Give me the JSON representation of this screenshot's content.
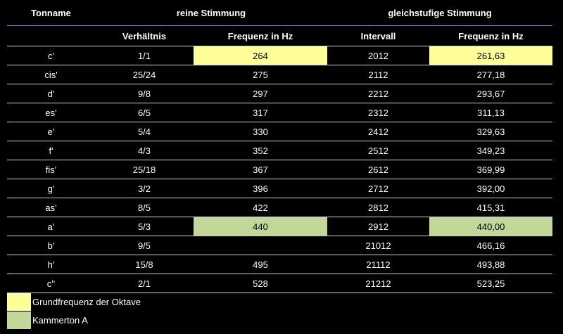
{
  "header": {
    "tonname": "Tonname",
    "reine": "reine Stimmung",
    "gleich": "gleichstufige Stimmung",
    "verhaeltnis": "Verhältnis",
    "frequenz_reine": "Frequenz in Hz",
    "intervall": "Intervall",
    "frequenz_gleich": "Frequenz in Hz"
  },
  "rows": [
    {
      "ton": "c'",
      "verh": "1/1",
      "freq_r": "264",
      "interv": "2012",
      "freq_g": "261,63",
      "hl": "yellow"
    },
    {
      "ton": "cis'",
      "verh": "25/24",
      "freq_r": "275",
      "interv": "2112",
      "freq_g": "277,18",
      "hl": ""
    },
    {
      "ton": "d'",
      "verh": "9/8",
      "freq_r": "297",
      "interv": "2212",
      "freq_g": "293,67",
      "hl": ""
    },
    {
      "ton": "es'",
      "verh": "6/5",
      "freq_r": "317",
      "interv": "2312",
      "freq_g": "311,13",
      "hl": ""
    },
    {
      "ton": "e'",
      "verh": "5/4",
      "freq_r": "330",
      "interv": "2412",
      "freq_g": "329,63",
      "hl": ""
    },
    {
      "ton": "f'",
      "verh": "4/3",
      "freq_r": "352",
      "interv": "2512",
      "freq_g": "349,23",
      "hl": ""
    },
    {
      "ton": "fis'",
      "verh": "25/18",
      "freq_r": "367",
      "interv": "2612",
      "freq_g": "369,99",
      "hl": ""
    },
    {
      "ton": "g'",
      "verh": "3/2",
      "freq_r": "396",
      "interv": "2712",
      "freq_g": "392,00",
      "hl": ""
    },
    {
      "ton": "as'",
      "verh": "8/5",
      "freq_r": "422",
      "interv": "2812",
      "freq_g": "415,31",
      "hl": ""
    },
    {
      "ton": "a'",
      "verh": "5/3",
      "freq_r": "440",
      "interv": "2912",
      "freq_g": "440,00",
      "hl": "green"
    },
    {
      "ton": "b'",
      "verh": "9/5",
      "freq_r": "",
      "interv": "21012",
      "freq_g": "466,16",
      "hl": ""
    },
    {
      "ton": "h'",
      "verh": "15/8",
      "freq_r": "495",
      "interv": "21112",
      "freq_g": "493,88",
      "hl": ""
    },
    {
      "ton": "c''",
      "verh": "2/1",
      "freq_r": "528",
      "interv": "21212",
      "freq_g": "523,25",
      "hl": ""
    }
  ],
  "legend": [
    {
      "label": "Grundfrequenz der Oktave",
      "color": "#ffff99"
    },
    {
      "label": "Kammerton A",
      "color": "#c4d79b"
    }
  ],
  "colors": {
    "yellow": "#ffff99",
    "green": "#c4d79b",
    "background": "#000000"
  }
}
